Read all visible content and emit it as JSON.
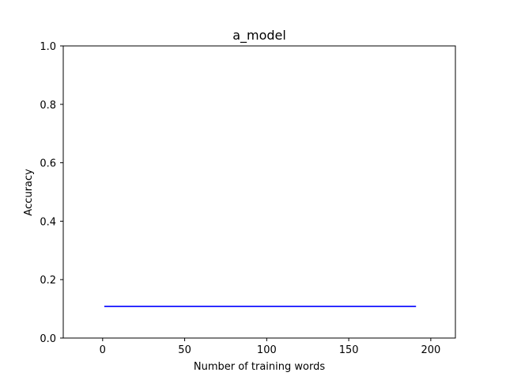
{
  "chart_data": {
    "type": "line",
    "title": "a_model",
    "xlabel": "Number of training words",
    "ylabel": "Accuracy",
    "xlim": [
      -24,
      215
    ],
    "ylim": [
      0.0,
      1.0
    ],
    "xticks": [
      0,
      50,
      100,
      150,
      200
    ],
    "yticks": [
      0.0,
      0.2,
      0.4,
      0.6,
      0.8,
      1.0
    ],
    "xtick_labels": [
      "0",
      "50",
      "100",
      "150",
      "200"
    ],
    "ytick_labels": [
      "0.0",
      "0.2",
      "0.4",
      "0.6",
      "0.8",
      "1.0"
    ],
    "grid": false,
    "series": [
      {
        "color": "#0000ff",
        "x": [
          1,
          191
        ],
        "y": [
          0.108,
          0.108
        ]
      }
    ]
  }
}
